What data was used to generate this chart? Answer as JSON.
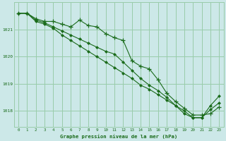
{
  "title": "Graphe pression niveau de la mer (hPa)",
  "bg_color": "#cce8e8",
  "grid_color": "#99ccaa",
  "line_color": "#1a6b1a",
  "x_min": -0.5,
  "x_max": 23.5,
  "y_min": 1017.4,
  "y_max": 1022.0,
  "y_ticks": [
    1018,
    1019,
    1020,
    1021
  ],
  "x_ticks": [
    0,
    1,
    2,
    3,
    4,
    5,
    6,
    7,
    8,
    9,
    10,
    11,
    12,
    13,
    14,
    15,
    16,
    17,
    18,
    19,
    20,
    21,
    22,
    23
  ],
  "series_plus": {
    "x": [
      0,
      1,
      2,
      3,
      4,
      5,
      6,
      7,
      8,
      9,
      10,
      11,
      12,
      13,
      14,
      15,
      16,
      17,
      18,
      19,
      20,
      21,
      22,
      23
    ],
    "y": [
      1021.6,
      1021.6,
      1021.4,
      1021.3,
      1021.3,
      1021.2,
      1021.1,
      1021.35,
      1021.15,
      1021.1,
      1020.85,
      1020.7,
      1020.6,
      1019.85,
      1019.65,
      1019.55,
      1019.15,
      1018.65,
      1018.35,
      1018.1,
      1017.85,
      1017.85,
      1017.9,
      1018.15
    ]
  },
  "series_dia1": {
    "x": [
      0,
      1,
      2,
      3,
      4,
      5,
      6,
      7,
      8,
      9,
      10,
      11,
      12,
      13,
      14,
      15,
      16,
      17,
      18,
      19,
      20,
      21,
      22,
      23
    ],
    "y": [
      1021.6,
      1021.6,
      1021.35,
      1021.25,
      1021.1,
      1020.95,
      1020.8,
      1020.65,
      1020.5,
      1020.35,
      1020.2,
      1020.1,
      1019.8,
      1019.5,
      1019.2,
      1018.95,
      1018.75,
      1018.5,
      1018.2,
      1017.9,
      1017.75,
      1017.75,
      1018.05,
      1018.3
    ]
  },
  "series_dia2": {
    "x": [
      0,
      1,
      2,
      3,
      4,
      5,
      6,
      7,
      8,
      9,
      10,
      11,
      12,
      13,
      14,
      15,
      16,
      17,
      18,
      19,
      20,
      21,
      22,
      23
    ],
    "y": [
      1021.6,
      1021.6,
      1021.3,
      1021.2,
      1021.05,
      1020.8,
      1020.6,
      1020.4,
      1020.2,
      1020.0,
      1019.8,
      1019.6,
      1019.4,
      1019.2,
      1018.95,
      1018.8,
      1018.6,
      1018.4,
      1018.2,
      1018.0,
      1017.75,
      1017.75,
      1018.2,
      1018.55
    ]
  }
}
